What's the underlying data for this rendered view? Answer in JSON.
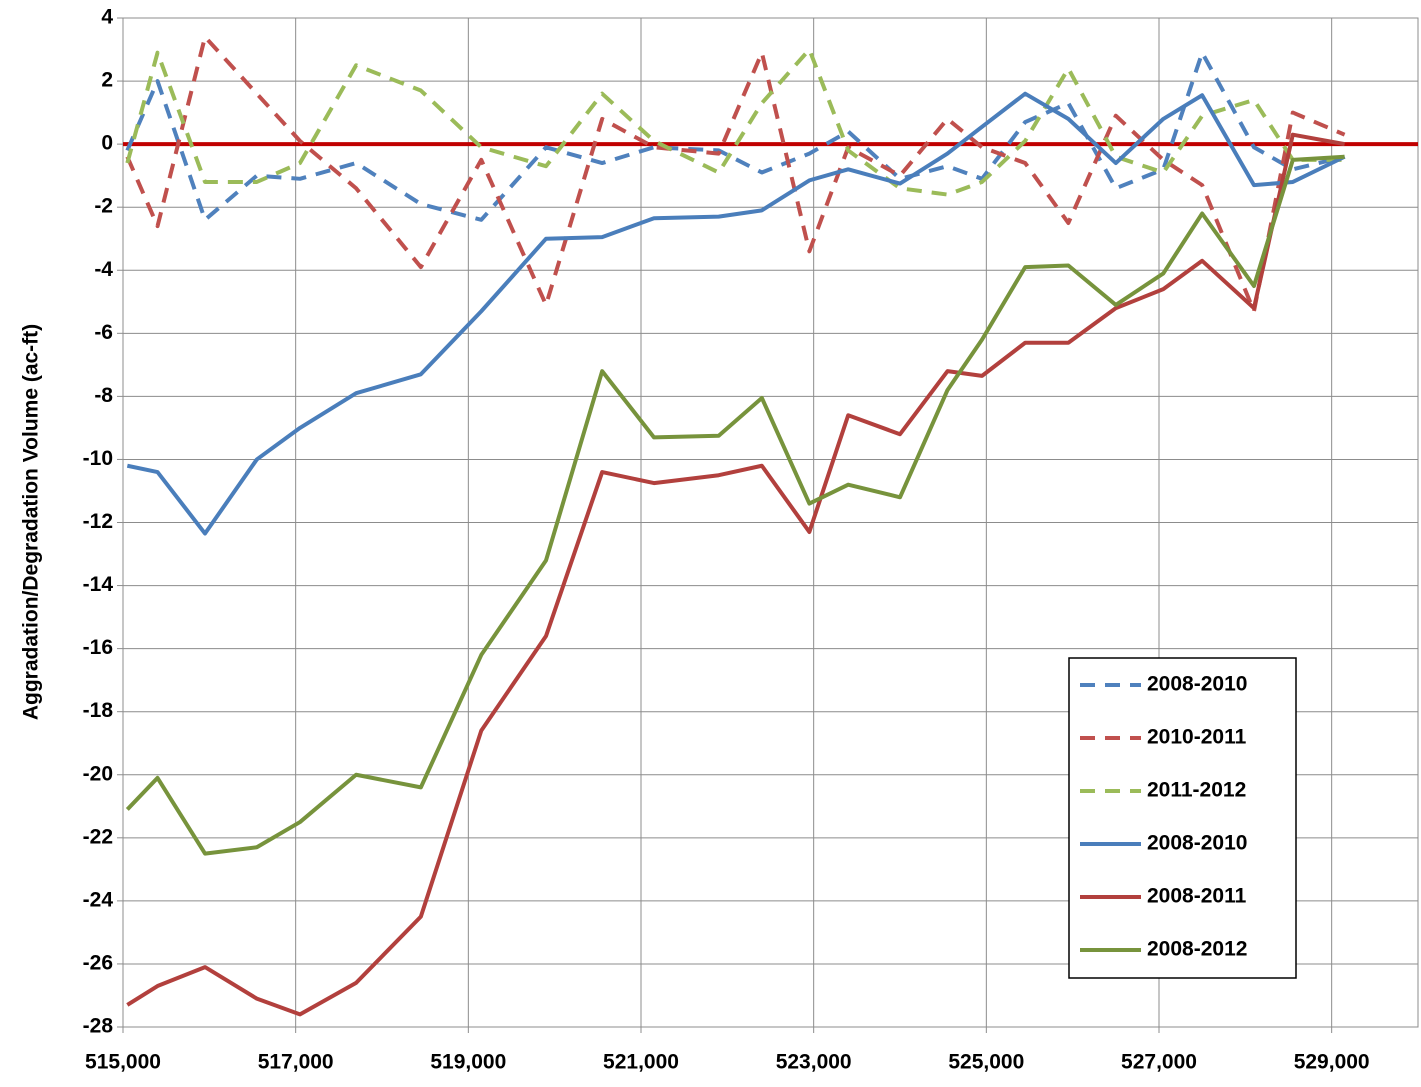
{
  "chart_data": {
    "type": "line",
    "y_label": "Aggradation/Degradation Volume (ac-ft)",
    "x": [
      515050,
      515400,
      515950,
      516550,
      517050,
      517700,
      518450,
      519150,
      519900,
      520550,
      521150,
      521900,
      522400,
      522950,
      523400,
      524000,
      524550,
      524950,
      525450,
      525950,
      526500,
      527050,
      527500,
      528100,
      528550,
      529150
    ],
    "series": [
      {
        "name": "2008-2010",
        "color": "#4f81bd",
        "dashed": true,
        "values": [
          -0.2,
          2.0,
          -2.4,
          -1.0,
          -1.1,
          -0.6,
          -1.9,
          -2.4,
          -0.1,
          -0.6,
          -0.1,
          -0.2,
          -0.9,
          -0.3,
          0.4,
          -1.1,
          -0.7,
          -1.1,
          0.7,
          1.3,
          -1.4,
          -0.8,
          2.9,
          -0.1,
          -0.8,
          -0.4
        ]
      },
      {
        "name": "2010-2011",
        "color": "#c0504d",
        "dashed": true,
        "values": [
          -0.4,
          -2.6,
          3.4,
          1.6,
          0.1,
          -1.4,
          -3.9,
          -0.5,
          -5.1,
          0.8,
          -0.1,
          -0.3,
          2.9,
          -3.4,
          -0.1,
          -1.0,
          0.8,
          -0.1,
          -0.6,
          -2.5,
          0.9,
          -0.5,
          -1.3,
          -5.3,
          1.0,
          0.3
        ]
      },
      {
        "name": "2011-2012",
        "color": "#9bbb59",
        "dashed": true,
        "values": [
          -0.6,
          2.9,
          -1.2,
          -1.2,
          -0.6,
          2.5,
          1.7,
          -0.1,
          -0.7,
          1.6,
          0.1,
          -0.9,
          1.3,
          3.0,
          -0.2,
          -1.4,
          -1.6,
          -1.2,
          0.1,
          2.4,
          -0.4,
          -0.9,
          0.9,
          1.4,
          -0.5,
          -0.5
        ]
      },
      {
        "name": "2008-2010",
        "color": "#4a7ebb",
        "dashed": false,
        "values": [
          -10.2,
          -10.4,
          -12.35,
          -10.0,
          -9.0,
          -7.9,
          -7.3,
          -5.3,
          -3.0,
          -2.95,
          -2.35,
          -2.3,
          -2.1,
          -1.15,
          -0.8,
          -1.25,
          -0.3,
          0.55,
          1.6,
          0.8,
          -0.6,
          0.8,
          1.55,
          -1.3,
          -1.2,
          -0.4
        ]
      },
      {
        "name": "2008-2011",
        "color": "#b2403d",
        "dashed": false,
        "values": [
          -27.3,
          -26.7,
          -26.1,
          -27.1,
          -27.6,
          -26.6,
          -24.5,
          -18.6,
          -15.6,
          -10.4,
          -10.75,
          -10.5,
          -10.2,
          -12.3,
          -8.6,
          -9.2,
          -7.2,
          -7.35,
          -6.3,
          -6.3,
          -5.2,
          -4.6,
          -3.7,
          -5.2,
          0.3,
          0.0
        ]
      },
      {
        "name": "2008-2012",
        "color": "#77933c",
        "dashed": false,
        "values": [
          -21.1,
          -20.1,
          -22.5,
          -22.3,
          -21.5,
          -20.0,
          -20.4,
          -16.2,
          -13.2,
          -7.2,
          -9.3,
          -9.25,
          -8.05,
          -11.4,
          -10.8,
          -11.2,
          -7.8,
          -6.2,
          -3.9,
          -3.85,
          -5.1,
          -4.1,
          -2.2,
          -4.5,
          -0.5,
          -0.4
        ]
      }
    ],
    "xlim": [
      515000,
      530000
    ],
    "xticks": [
      {
        "value": 515000,
        "label": "515,000"
      },
      {
        "value": 517000,
        "label": "517,000"
      },
      {
        "value": 519000,
        "label": "519,000"
      },
      {
        "value": 521000,
        "label": "521,000"
      },
      {
        "value": 523000,
        "label": "523,000"
      },
      {
        "value": 525000,
        "label": "525,000"
      },
      {
        "value": 527000,
        "label": "527,000"
      },
      {
        "value": 529000,
        "label": "529,000"
      }
    ],
    "ylim": [
      -28,
      4
    ],
    "yticks": [
      -28,
      -26,
      -24,
      -22,
      -20,
      -18,
      -16,
      -14,
      -12,
      -10,
      -8,
      -6,
      -4,
      -2,
      0,
      2,
      4
    ],
    "grid": true,
    "reference_line": {
      "value": 0,
      "color": "#c00000"
    },
    "legend": "lower-right"
  }
}
